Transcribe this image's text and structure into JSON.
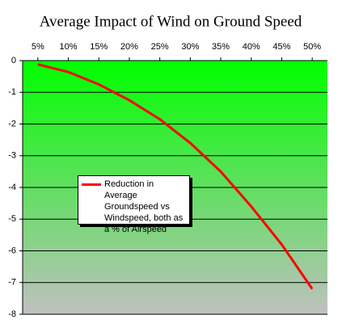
{
  "chart_data": {
    "type": "line",
    "title": "Average Impact of Wind on Ground Speed",
    "x": [
      5,
      10,
      15,
      20,
      25,
      30,
      35,
      40,
      45,
      50
    ],
    "series": [
      {
        "name": "Reduction in Average Groundspeed vs Windspeed, both as a % of Airspeed",
        "color": "#ff0000",
        "values": [
          -0.12,
          -0.36,
          -0.75,
          -1.25,
          -1.85,
          -2.6,
          -3.5,
          -4.6,
          -5.8,
          -7.2
        ]
      }
    ],
    "xlim": [
      2.5,
      52.5
    ],
    "xticks": [
      {
        "value": 5,
        "label": "5%"
      },
      {
        "value": 10,
        "label": "10%"
      },
      {
        "value": 15,
        "label": "15%"
      },
      {
        "value": 20,
        "label": "20%"
      },
      {
        "value": 25,
        "label": "25%"
      },
      {
        "value": 30,
        "label": "30%"
      },
      {
        "value": 35,
        "label": "35%"
      },
      {
        "value": 40,
        "label": "40%"
      },
      {
        "value": 45,
        "label": "45%"
      },
      {
        "value": 50,
        "label": "50%"
      }
    ],
    "ylim": [
      -8,
      0
    ],
    "yticks": [
      0,
      -1,
      -2,
      -3,
      -4,
      -5,
      -6,
      -7,
      -8
    ],
    "grid": true
  }
}
